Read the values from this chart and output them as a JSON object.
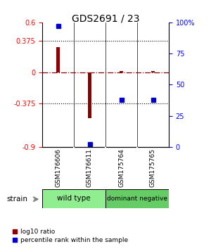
{
  "title": "GDS2691 / 23",
  "samples": [
    "GSM176606",
    "GSM176611",
    "GSM175764",
    "GSM175765"
  ],
  "log10_ratio": [
    0.3,
    -0.55,
    0.01,
    0.01
  ],
  "percentile_rank": [
    97,
    2,
    38,
    38
  ],
  "left_ylim": [
    -0.9,
    0.6
  ],
  "right_ylim": [
    0,
    100
  ],
  "left_yticks": [
    -0.9,
    -0.375,
    0,
    0.375,
    0.6
  ],
  "left_yticklabels": [
    "-0.9",
    "-0.375",
    "0",
    "0.375",
    "0.6"
  ],
  "right_yticks": [
    0,
    25,
    50,
    75,
    100
  ],
  "right_yticklabels": [
    "0",
    "25",
    "50",
    "75",
    "100%"
  ],
  "hlines": [
    0.375,
    -0.375
  ],
  "bar_color": "#8B0000",
  "dot_color": "#0000CD",
  "background_color": "#ffffff",
  "group1_label": "wild type",
  "group2_label": "dominant negative",
  "group1_color": "#90EE90",
  "group2_color": "#66CC66",
  "sample_box_color": "#C0C0C0",
  "bar_width": 0.1
}
